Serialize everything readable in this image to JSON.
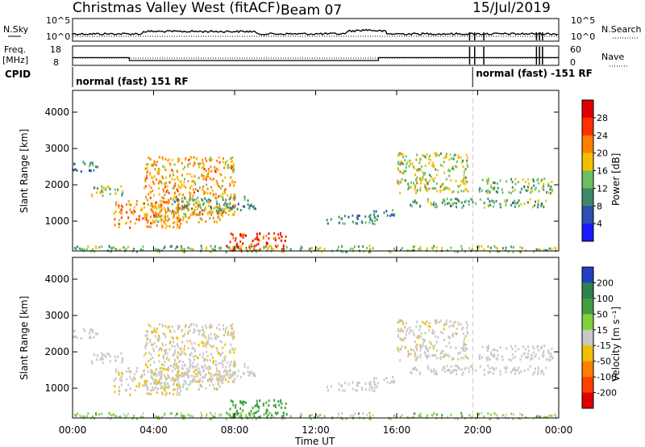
{
  "header": {
    "station": "Christmas Valley West (fitACF)",
    "beam": "Beam 07",
    "date": "15/Jul/2019"
  },
  "noise_panel": {
    "left_label": "N.Sky",
    "right_label": "N.Search",
    "left_ticks": [
      "10^5",
      "10^0"
    ],
    "right_ticks": [
      "10^5",
      "10^0"
    ]
  },
  "freq_panel": {
    "left_label_1": "Freq.",
    "left_label_2": "[MHz]",
    "right_label": "Nave",
    "left_ticks": [
      "18",
      "8"
    ],
    "right_ticks": [
      "60",
      "0"
    ]
  },
  "cpid": {
    "label": "CPID",
    "mode_1": "normal (fast) 151 RF",
    "mode_2": "normal (fast) -151 RF",
    "mode_change_hour": 19.75
  },
  "x_axis": {
    "label": "Time UT",
    "ticks": [
      "00:00",
      "04:00",
      "08:00",
      "12:00",
      "16:00",
      "20:00",
      "00:00"
    ],
    "range_hours": [
      0,
      24
    ]
  },
  "power_panel": {
    "ylabel": "Slant Range [km]",
    "yticks": [
      "1000",
      "2000",
      "3000",
      "4000"
    ],
    "colorbar_label": "Power [dB]",
    "colorbar_ticks": [
      "4",
      "8",
      "12",
      "16",
      "20",
      "24",
      "28"
    ],
    "colors": [
      "#1a1aff",
      "#2d4fb0",
      "#3a8a6a",
      "#6ac060",
      "#f0c000",
      "#ff8000",
      "#ff3000",
      "#e00000"
    ]
  },
  "velocity_panel": {
    "ylabel": "Slant Range [km]",
    "yticks": [
      "1000",
      "2000",
      "3000",
      "4000"
    ],
    "colorbar_label": "Velocity [m s⁻¹]",
    "colorbar_ticks": [
      "200",
      "100",
      "50",
      "15",
      "-15",
      "-50",
      "-100",
      "-200"
    ],
    "colors": [
      "#2040c0",
      "#308050",
      "#40a040",
      "#80d040",
      "#c8c8c8",
      "#f0c000",
      "#ff8000",
      "#ff4000",
      "#e00000"
    ]
  },
  "chart_data": {
    "type": "heatmap",
    "title": "Christmas Valley West (fitACF) Beam 07 15/Jul/2019",
    "xlabel": "Time UT",
    "ylabel": "Slant Range [km]",
    "xlim_hours": [
      0,
      24
    ],
    "ylim_km": [
      180,
      4600
    ],
    "frequency_mhz": [
      {
        "from_hour": 0,
        "to_hour": 2.8,
        "value": 12
      },
      {
        "from_hour": 2.8,
        "to_hour": 15.1,
        "value": 10.5
      },
      {
        "from_hour": 15.1,
        "to_hour": 24,
        "value": 12
      }
    ],
    "scatter_regions": [
      {
        "t0": 0.0,
        "t1": 1.2,
        "r0": 2400,
        "r1": 2700,
        "power": 10,
        "velocity": 0
      },
      {
        "t0": 0.8,
        "t1": 2.5,
        "r0": 1700,
        "r1": 2000,
        "power": 14,
        "velocity": 0
      },
      {
        "t0": 2.0,
        "t1": 5.5,
        "r0": 850,
        "r1": 1600,
        "power": 22,
        "velocity": -10
      },
      {
        "t0": 4.0,
        "t1": 7.5,
        "r0": 1000,
        "r1": 1300,
        "power": 18,
        "velocity": 5
      },
      {
        "t0": 3.5,
        "t1": 8.0,
        "r0": 1200,
        "r1": 2800,
        "power": 20,
        "velocity": -10
      },
      {
        "t0": 5.0,
        "t1": 9.0,
        "r0": 1300,
        "r1": 1700,
        "power": 12,
        "velocity": 0
      },
      {
        "t0": 7.5,
        "t1": 10.5,
        "r0": 200,
        "r1": 700,
        "power": 26,
        "velocity": 60
      },
      {
        "t0": 0.0,
        "t1": 24.0,
        "r0": 180,
        "r1": 350,
        "power": 14,
        "velocity": 20
      },
      {
        "t0": 12.5,
        "t1": 15.0,
        "r0": 950,
        "r1": 1200,
        "power": 10,
        "velocity": 0
      },
      {
        "t0": 14.8,
        "t1": 15.9,
        "r0": 1100,
        "r1": 1350,
        "power": 10,
        "velocity": 0
      },
      {
        "t0": 16.0,
        "t1": 19.5,
        "r0": 1800,
        "r1": 2900,
        "power": 16,
        "velocity": -5
      },
      {
        "t0": 16.5,
        "t1": 23.5,
        "r0": 1400,
        "r1": 1650,
        "power": 12,
        "velocity": 0
      },
      {
        "t0": 20.0,
        "t1": 23.8,
        "r0": 1800,
        "r1": 2200,
        "power": 14,
        "velocity": 0
      }
    ]
  }
}
